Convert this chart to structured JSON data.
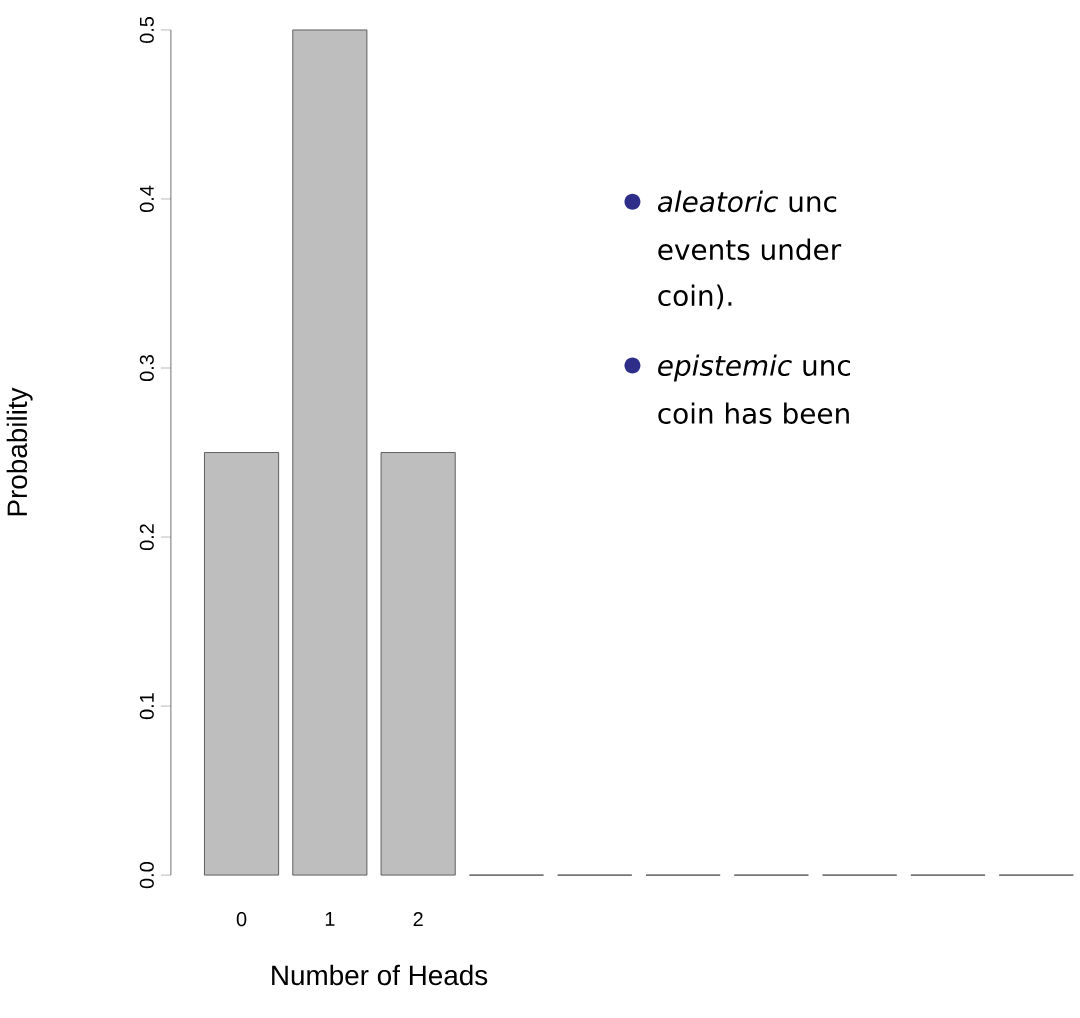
{
  "chart_data": {
    "type": "bar",
    "categories": [
      "0",
      "1",
      "2",
      null,
      null,
      null,
      null,
      null,
      null,
      null
    ],
    "values": [
      0.25,
      0.5,
      0.25,
      0,
      0,
      0,
      0,
      0,
      0,
      0
    ],
    "color": "#bebebe",
    "xlabel": "Number of Heads",
    "ylabel": "Probability",
    "ylim": [
      0,
      0.5
    ],
    "yticks": [
      {
        "value": 0,
        "label": "0.0"
      },
      0.1,
      0.2,
      0.3,
      0.4,
      0.5
    ],
    "annotations": [
      "*aleatoric* unc",
      "events under",
      "coin).",
      "*epistemic* unc",
      "coin has been"
    ]
  }
}
